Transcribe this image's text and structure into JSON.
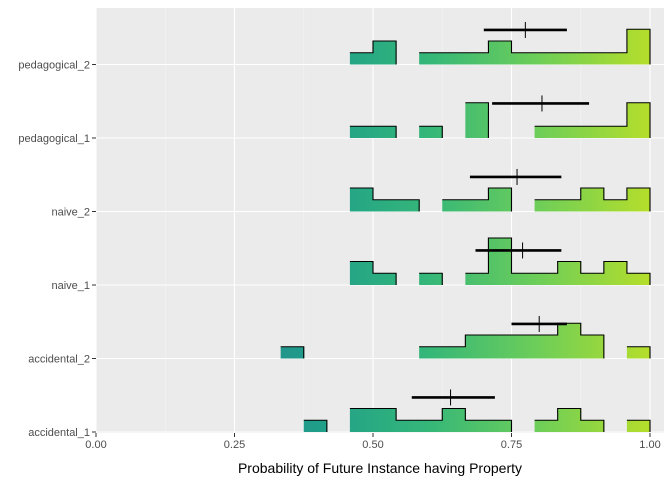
{
  "chart_data": {
    "type": "histogram-ridgeline",
    "title": "",
    "xlabel": "Probability of Future Instance having Property",
    "ylabel": "",
    "xlim": [
      0,
      1
    ],
    "x_ticks": [
      "0.00",
      "0.25",
      "0.50",
      "0.75",
      "1.00"
    ],
    "x_tick_values": [
      0,
      0.25,
      0.5,
      0.75,
      1
    ],
    "bin_width": 0.0417,
    "bin_starts": [
      0.0,
      0.0417,
      0.0833,
      0.125,
      0.1667,
      0.2083,
      0.25,
      0.2917,
      0.3333,
      0.375,
      0.4167,
      0.4583,
      0.5,
      0.5417,
      0.5833,
      0.625,
      0.6667,
      0.7083,
      0.75,
      0.7917,
      0.8333,
      0.875,
      0.9167,
      0.9583
    ],
    "categories": [
      "pedagogical_2",
      "pedagogical_1",
      "naive_2",
      "naive_1",
      "accidental_2",
      "accidental_1"
    ],
    "series": [
      {
        "name": "pedagogical_2",
        "counts": [
          0,
          0,
          0,
          0,
          0,
          0,
          0,
          0,
          0,
          0,
          0,
          1,
          2,
          0,
          1,
          1,
          1,
          2,
          1,
          1,
          1,
          1,
          1,
          3
        ],
        "mean": 0.775,
        "ci": [
          0.7,
          0.85
        ]
      },
      {
        "name": "pedagogical_1",
        "counts": [
          0,
          0,
          0,
          0,
          0,
          0,
          0,
          0,
          0,
          0,
          0,
          1,
          1,
          0,
          1,
          0,
          3,
          0,
          0,
          1,
          1,
          1,
          1,
          3
        ],
        "mean": 0.805,
        "ci": [
          0.715,
          0.89
        ]
      },
      {
        "name": "naive_2",
        "counts": [
          0,
          0,
          0,
          0,
          0,
          0,
          0,
          0,
          0,
          0,
          0,
          2,
          1,
          1,
          0,
          1,
          1,
          2,
          0,
          1,
          1,
          2,
          1,
          2
        ],
        "mean": 0.76,
        "ci": [
          0.675,
          0.84
        ]
      },
      {
        "name": "naive_1",
        "counts": [
          0,
          0,
          0,
          0,
          0,
          0,
          0,
          0,
          0,
          0,
          0,
          2,
          1,
          0,
          1,
          0,
          1,
          4,
          1,
          1,
          2,
          1,
          2,
          1
        ],
        "mean": 0.77,
        "ci": [
          0.685,
          0.84
        ]
      },
      {
        "name": "accidental_2",
        "counts": [
          0,
          0,
          0,
          0,
          0,
          0,
          0,
          0,
          1,
          0,
          0,
          0,
          0,
          0,
          1,
          1,
          2,
          2,
          2,
          2,
          3,
          2,
          0,
          1
        ],
        "mean": 0.8,
        "ci": [
          0.75,
          0.85
        ]
      },
      {
        "name": "accidental_1",
        "counts": [
          0,
          0,
          0,
          0,
          0,
          0,
          0,
          0,
          0,
          1,
          0,
          2,
          2,
          1,
          1,
          2,
          1,
          1,
          0,
          1,
          2,
          1,
          0,
          1
        ],
        "mean": 0.64,
        "ci": [
          0.57,
          0.72
        ]
      }
    ],
    "color_scale": [
      "#31688e",
      "#26828e",
      "#1f9e89",
      "#35b779",
      "#6ece58",
      "#b5de2b"
    ],
    "panel_background": "#ebebeb",
    "grid": true,
    "legend": "none"
  }
}
